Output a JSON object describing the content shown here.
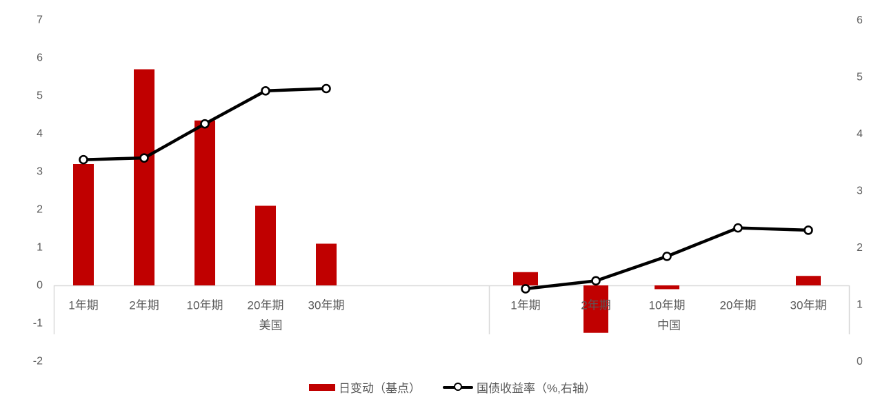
{
  "chart_data": {
    "type": "bar",
    "subtype": "dual-axis-grouped-bar-with-line",
    "title": "",
    "groups": [
      {
        "label": "美国",
        "categories": [
          "1年期",
          "2年期",
          "10年期",
          "20年期",
          "30年期"
        ],
        "bars": [
          3.2,
          5.7,
          4.35,
          2.1,
          1.1
        ],
        "line": [
          3.55,
          3.58,
          4.18,
          4.76,
          4.8
        ]
      },
      {
        "label": "中国",
        "categories": [
          "1年期",
          "2年期",
          "10年期",
          "20年期",
          "30年期"
        ],
        "bars": [
          0.35,
          -1.25,
          -0.1,
          0,
          0.25
        ],
        "line": [
          1.28,
          1.42,
          1.85,
          2.35,
          2.31
        ]
      }
    ],
    "series": [
      {
        "name": "日变动（基点）",
        "type": "bar",
        "axis": "left",
        "color": "#C00000"
      },
      {
        "name": "国债收益率（%,右轴）",
        "type": "line",
        "axis": "right",
        "color": "#000000",
        "marker": "open-circle"
      }
    ],
    "left_axis": {
      "min": -2,
      "max": 7,
      "step": 1,
      "ticks": [
        "7",
        "6",
        "5",
        "4",
        "3",
        "2",
        "1",
        "0",
        "-1",
        "-2"
      ]
    },
    "right_axis": {
      "min": 0,
      "max": 6,
      "step": 1,
      "ticks": [
        "6",
        "5",
        "4",
        "3",
        "2",
        "1",
        "0"
      ]
    },
    "grid": false,
    "legend_position": "bottom",
    "colors": {
      "bar": "#C00000",
      "line": "#000000",
      "axis_text": "#595959",
      "axis_line": "#D9D9D9",
      "background": "#FFFFFF"
    }
  },
  "legend": {
    "items": [
      {
        "label": "日变动（基点）"
      },
      {
        "label": "国债收益率（%,右轴）"
      }
    ]
  }
}
